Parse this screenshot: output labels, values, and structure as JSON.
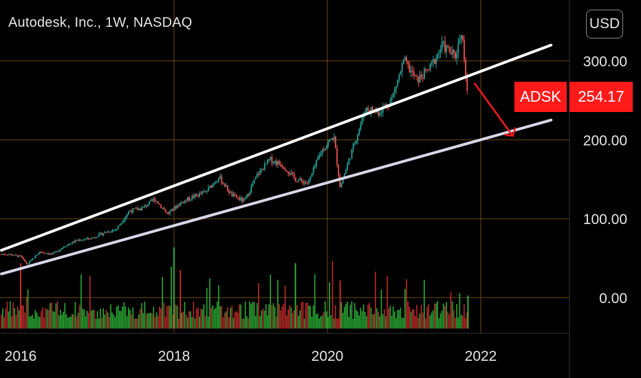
{
  "header": {
    "title": "Autodesk, Inc., 1W, NASDAQ",
    "currency_button": "USD"
  },
  "price_badge": {
    "symbol": "ADSK",
    "price": "254.17",
    "color": "#ff1a1a"
  },
  "colors": {
    "background": "#000000",
    "grid": "#6b4a12",
    "up": "#26a69a",
    "down": "#ef5350",
    "volume_up": "#2fbf3a",
    "volume_down": "#d32f2f",
    "trendline_upper": "#ffffff",
    "trendline_lower": "#d8d8e8",
    "arrow": "#ff1a1a"
  },
  "chart_data": {
    "type": "candlestick",
    "title": "Autodesk, Inc., 1W, NASDAQ",
    "x_ticks": [
      "2016",
      "2018",
      "2020",
      "2022"
    ],
    "y_ticks": [
      "0.00",
      "100.00",
      "200.00",
      "300.00"
    ],
    "ylim": [
      -40,
      380
    ],
    "grid": true,
    "series": [
      {
        "type": "price",
        "points": [
          [
            "2015-11",
            55
          ],
          [
            "2016-01",
            52
          ],
          [
            "2016-02",
            42
          ],
          [
            "2016-04",
            58
          ],
          [
            "2016-06",
            55
          ],
          [
            "2016-08",
            66
          ],
          [
            "2016-10",
            73
          ],
          [
            "2016-12",
            75
          ],
          [
            "2017-02",
            82
          ],
          [
            "2017-04",
            87
          ],
          [
            "2017-06",
            110
          ],
          [
            "2017-08",
            113
          ],
          [
            "2017-10",
            125
          ],
          [
            "2017-12",
            106
          ],
          [
            "2018-02",
            120
          ],
          [
            "2018-04",
            128
          ],
          [
            "2018-06",
            134
          ],
          [
            "2018-08",
            153
          ],
          [
            "2018-10",
            130
          ],
          [
            "2018-12",
            122
          ],
          [
            "2019-02",
            155
          ],
          [
            "2019-04",
            175
          ],
          [
            "2019-06",
            168
          ],
          [
            "2019-08",
            150
          ],
          [
            "2019-10",
            145
          ],
          [
            "2019-12",
            185
          ],
          [
            "2020-02",
            205
          ],
          [
            "2020-03",
            140
          ],
          [
            "2020-05",
            190
          ],
          [
            "2020-07",
            240
          ],
          [
            "2020-09",
            235
          ],
          [
            "2020-11",
            250
          ],
          [
            "2021-01",
            300
          ],
          [
            "2021-03",
            275
          ],
          [
            "2021-05",
            290
          ],
          [
            "2021-07",
            320
          ],
          [
            "2021-09",
            305
          ],
          [
            "2021-10",
            340
          ],
          [
            "2021-11",
            254.17
          ]
        ]
      },
      {
        "type": "volume",
        "note": "weekly volume bars shown along the bottom pane (relative scale)"
      }
    ],
    "annotations": [
      {
        "type": "trendline",
        "name": "upper channel",
        "from": [
          "2015-10",
          60
        ],
        "to": [
          "2022-12",
          320
        ]
      },
      {
        "type": "trendline",
        "name": "lower channel",
        "from": [
          "2015-10",
          30
        ],
        "to": [
          "2022-12",
          225
        ]
      },
      {
        "type": "arrow",
        "from": [
          "2021-12",
          272
        ],
        "to": [
          "2022-06",
          205
        ]
      }
    ]
  }
}
